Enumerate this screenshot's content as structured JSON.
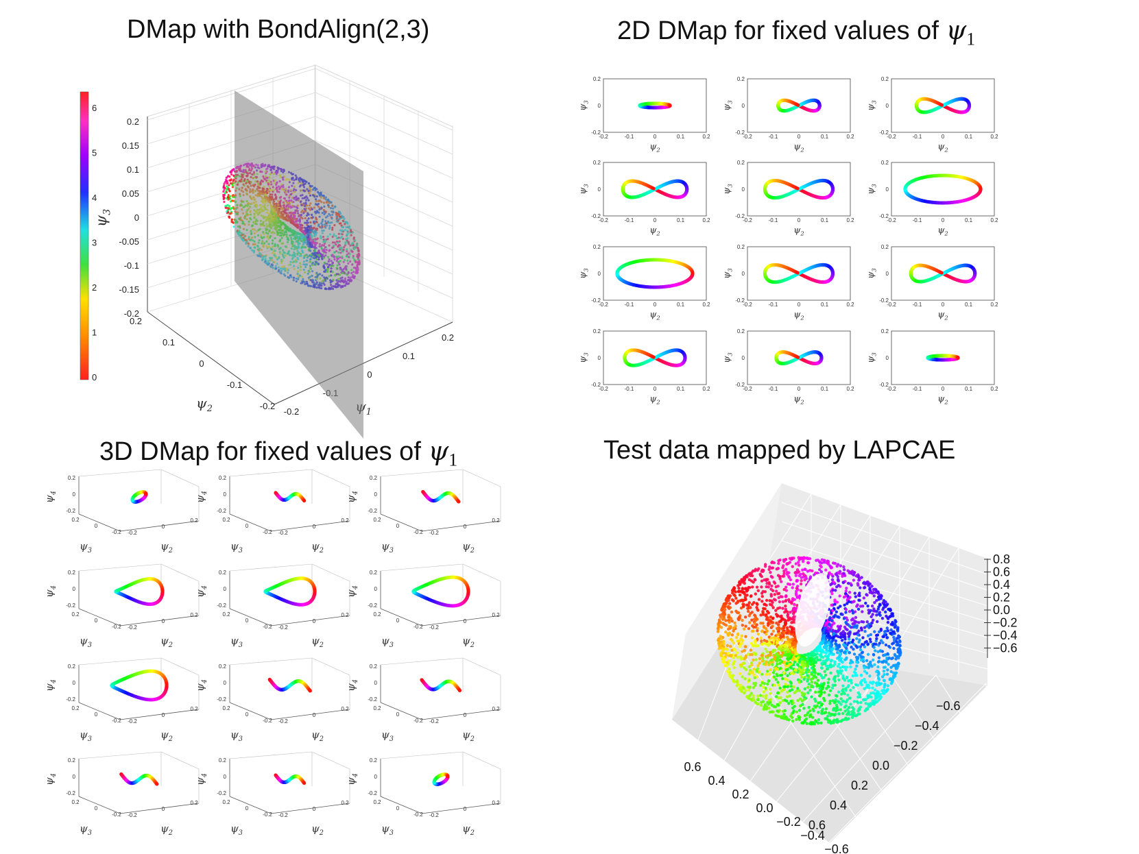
{
  "titles": {
    "p1": "DMap with BondAlign(2,3)",
    "p2_prefix": "2D DMap for fixed values of ",
    "p3_prefix": "3D DMap for fixed values of ",
    "psi_symbol": "ψ",
    "psi_sub": "1",
    "p4": "Test data mapped by LAPCAE"
  },
  "colors": {
    "hue_order": [
      "#ff2020",
      "#ff8c00",
      "#ffe000",
      "#40e040",
      "#20e0e0",
      "#2030ff",
      "#a000ff",
      "#ff30c0",
      "#ff2020"
    ],
    "slice_plane": "#808080"
  },
  "chart_data": [
    {
      "type": "scatter",
      "title": "DMap with BondAlign(2,3)",
      "projection": "3d",
      "xlabel": "ψ1",
      "ylabel": "ψ2",
      "zlabel": "ψ3",
      "xlim": [
        -0.2,
        0.2
      ],
      "ylim": [
        -0.2,
        0.2
      ],
      "zlim": [
        -0.2,
        0.2
      ],
      "x_ticks": [
        "-0.2",
        "-0.1",
        "0",
        "0.1",
        "0.2"
      ],
      "y_ticks": [
        "-0.2",
        "-0.1",
        "0",
        "0.1",
        "0.2"
      ],
      "z_ticks": [
        "0.2",
        "0.15",
        "0.1",
        "0.05",
        "0",
        "-0.05",
        "-0.1",
        "-0.15",
        "-0.2"
      ],
      "colorbar": {
        "ticks": [
          "6",
          "5",
          "4",
          "3",
          "2",
          "1",
          "0"
        ],
        "range": [
          0,
          6.28
        ]
      },
      "shape": "torus-like shell colored by angle, cut by a gray plane at ψ1 = 0",
      "grid": true
    },
    {
      "type": "scatter",
      "title": "2D DMap for fixed values of ψ1",
      "layout": "4x3 small multiples",
      "xlabel": "ψ2",
      "ylabel": "ψ3",
      "xlim": [
        -0.2,
        0.2
      ],
      "ylim": [
        -0.2,
        0.2
      ],
      "x_ticks": [
        "-0.2",
        "-0.1",
        "0",
        "0.1",
        "0.2"
      ],
      "y_ticks": [
        "0.2",
        "0",
        "-0.2"
      ],
      "panels": [
        {
          "shape": "line",
          "extent": 0.4
        },
        {
          "shape": "figure-eight",
          "extent": 0.55
        },
        {
          "shape": "figure-eight",
          "extent": 0.7
        },
        {
          "shape": "figure-eight",
          "extent": 0.85
        },
        {
          "shape": "figure-eight",
          "extent": 0.9
        },
        {
          "shape": "ellipse",
          "extent": 1.0
        },
        {
          "shape": "ellipse",
          "extent": 1.0
        },
        {
          "shape": "figure-eight",
          "extent": 0.9
        },
        {
          "shape": "figure-eight",
          "extent": 0.85
        },
        {
          "shape": "figure-eight",
          "extent": 0.8
        },
        {
          "shape": "figure-eight",
          "extent": 0.6
        },
        {
          "shape": "line",
          "extent": 0.4
        }
      ]
    },
    {
      "type": "scatter",
      "title": "3D DMap for fixed values of ψ1",
      "layout": "4x3 small multiples",
      "projection": "3d",
      "xlabel": "ψ3",
      "ylabel": "ψ2",
      "zlabel": "ψ4",
      "z_ticks": [
        "0.2",
        "0",
        "-0.2"
      ],
      "x_ticks": [
        "0.2",
        "0",
        "-0.2"
      ],
      "y_ticks": [
        "-0.2",
        "0",
        "0.2"
      ],
      "panels": [
        {
          "shape": "blob",
          "extent": 0.45
        },
        {
          "shape": "arc",
          "extent": 0.6
        },
        {
          "shape": "arc",
          "extent": 0.75
        },
        {
          "shape": "loop",
          "extent": 0.85
        },
        {
          "shape": "loop",
          "extent": 0.9
        },
        {
          "shape": "loop",
          "extent": 1.0
        },
        {
          "shape": "loop",
          "extent": 1.0
        },
        {
          "shape": "arc",
          "extent": 0.85
        },
        {
          "shape": "arc",
          "extent": 0.8
        },
        {
          "shape": "arc",
          "extent": 0.75
        },
        {
          "shape": "arc",
          "extent": 0.6
        },
        {
          "shape": "blob",
          "extent": 0.45
        }
      ]
    },
    {
      "type": "scatter",
      "title": "Test data mapped by LAPCAE",
      "projection": "3d",
      "z_ticks": [
        "0.8",
        "0.6",
        "0.4",
        "0.2",
        "0.0",
        "−0.2",
        "−0.4",
        "−0.6"
      ],
      "y_ticks": [
        "−0.6",
        "−0.4",
        "−0.2",
        "0.0",
        "0.2",
        "0.4",
        "0.6"
      ],
      "x_ticks": [
        "0.6",
        "0.4",
        "0.2",
        "0.0",
        "−0.2",
        "−0.4",
        "−0.6"
      ],
      "shape": "torus colored by angle",
      "grid": true
    }
  ]
}
